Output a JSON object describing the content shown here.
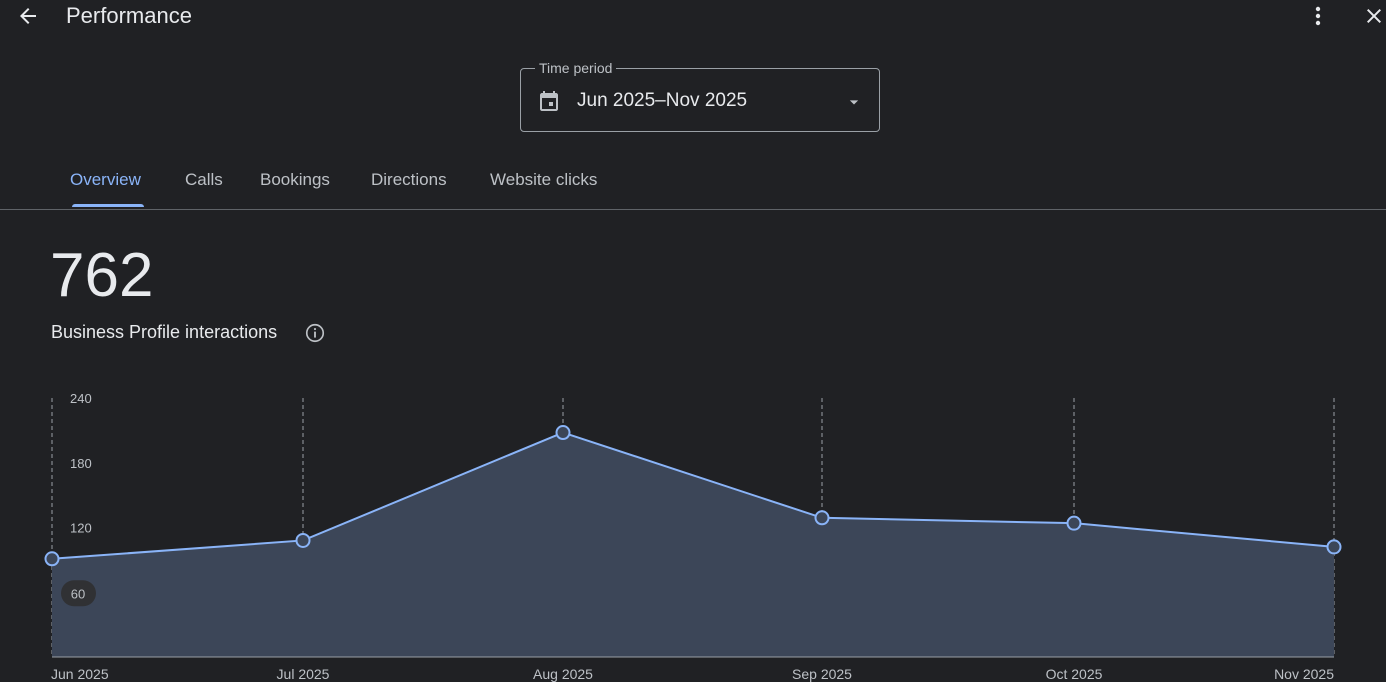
{
  "header": {
    "title": "Performance",
    "back_icon": "arrow-back-icon",
    "more_icon": "more-vert-icon",
    "close_icon": "close-icon"
  },
  "time_period": {
    "label": "Time period",
    "value": "Jun 2025–Nov 2025",
    "icon": "calendar-icon"
  },
  "tabs": [
    {
      "label": "Overview",
      "active": true
    },
    {
      "label": "Calls",
      "active": false
    },
    {
      "label": "Bookings",
      "active": false
    },
    {
      "label": "Directions",
      "active": false
    },
    {
      "label": "Website clicks",
      "active": false
    }
  ],
  "summary": {
    "total": "762",
    "label": "Business Profile interactions"
  },
  "colors": {
    "accent": "#8ab4f8",
    "area_fill": "#3c4658",
    "background": "#202124"
  },
  "chart_data": {
    "type": "area",
    "categories": [
      "Jun 2025",
      "Jul 2025",
      "Aug 2025",
      "Sep 2025",
      "Oct 2025",
      "Nov 2025"
    ],
    "series": [
      {
        "name": "Business Profile interactions",
        "values": [
          91,
          108,
          208,
          129,
          124,
          102
        ]
      }
    ],
    "y_ticks": [
      "240",
      "180",
      "120",
      "60"
    ],
    "ylim": [
      0,
      240
    ],
    "title": "",
    "xlabel": "",
    "ylabel": ""
  }
}
